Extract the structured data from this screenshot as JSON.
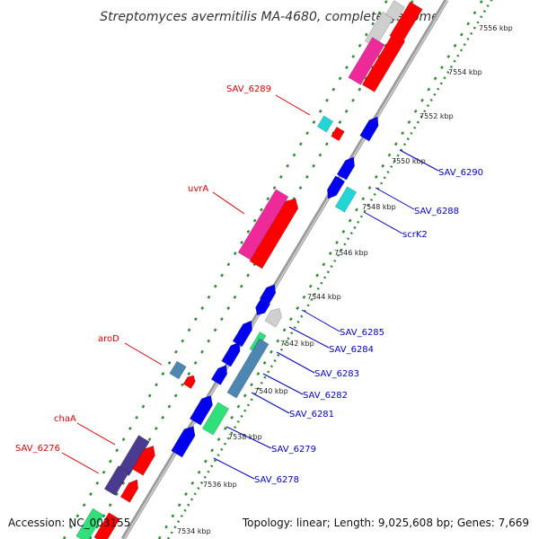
{
  "title": "Streptomyces avermitilis MA-4680, complete genome",
  "accession": "Accession: NC_003155",
  "summary": "Topology: linear; Length: 9,025,608 bp; Genes: 7,669",
  "colors": {
    "backbone": "#8c8c8c",
    "ruler_dots": "#2e8b2e",
    "label_red": "#e00000",
    "label_blue": "#0000cc",
    "gene_red": "#ff0000",
    "gene_blue": "#0000ee",
    "gene_magenta": "#ee2a9a",
    "gene_cyan": "#22d6d6",
    "gene_steel": "#4d86b0",
    "gene_gray": "#cfcfcf",
    "gene_green": "#30e07a",
    "gene_purple": "#4a3a90"
  },
  "ruler_ticks": [
    "7534 kbp",
    "7536 kbp",
    "7538 kbp",
    "7540 kbp",
    "7542 kbp",
    "7544 kbp",
    "7546 kbp",
    "7548 kbp",
    "7550 kbp",
    "7552 kbp",
    "7554 kbp",
    "7556 kbp"
  ],
  "labels_left": [
    "SAV_6289",
    "uvrA",
    "aroD",
    "chaA",
    "SAV_6276"
  ],
  "labels_right": [
    "SAV_6290",
    "SAV_6288",
    "scrK2",
    "SAV_6285",
    "SAV_6284",
    "SAV_6283",
    "SAV_6282",
    "SAV_6281",
    "SAV_6279",
    "SAV_6278"
  ]
}
